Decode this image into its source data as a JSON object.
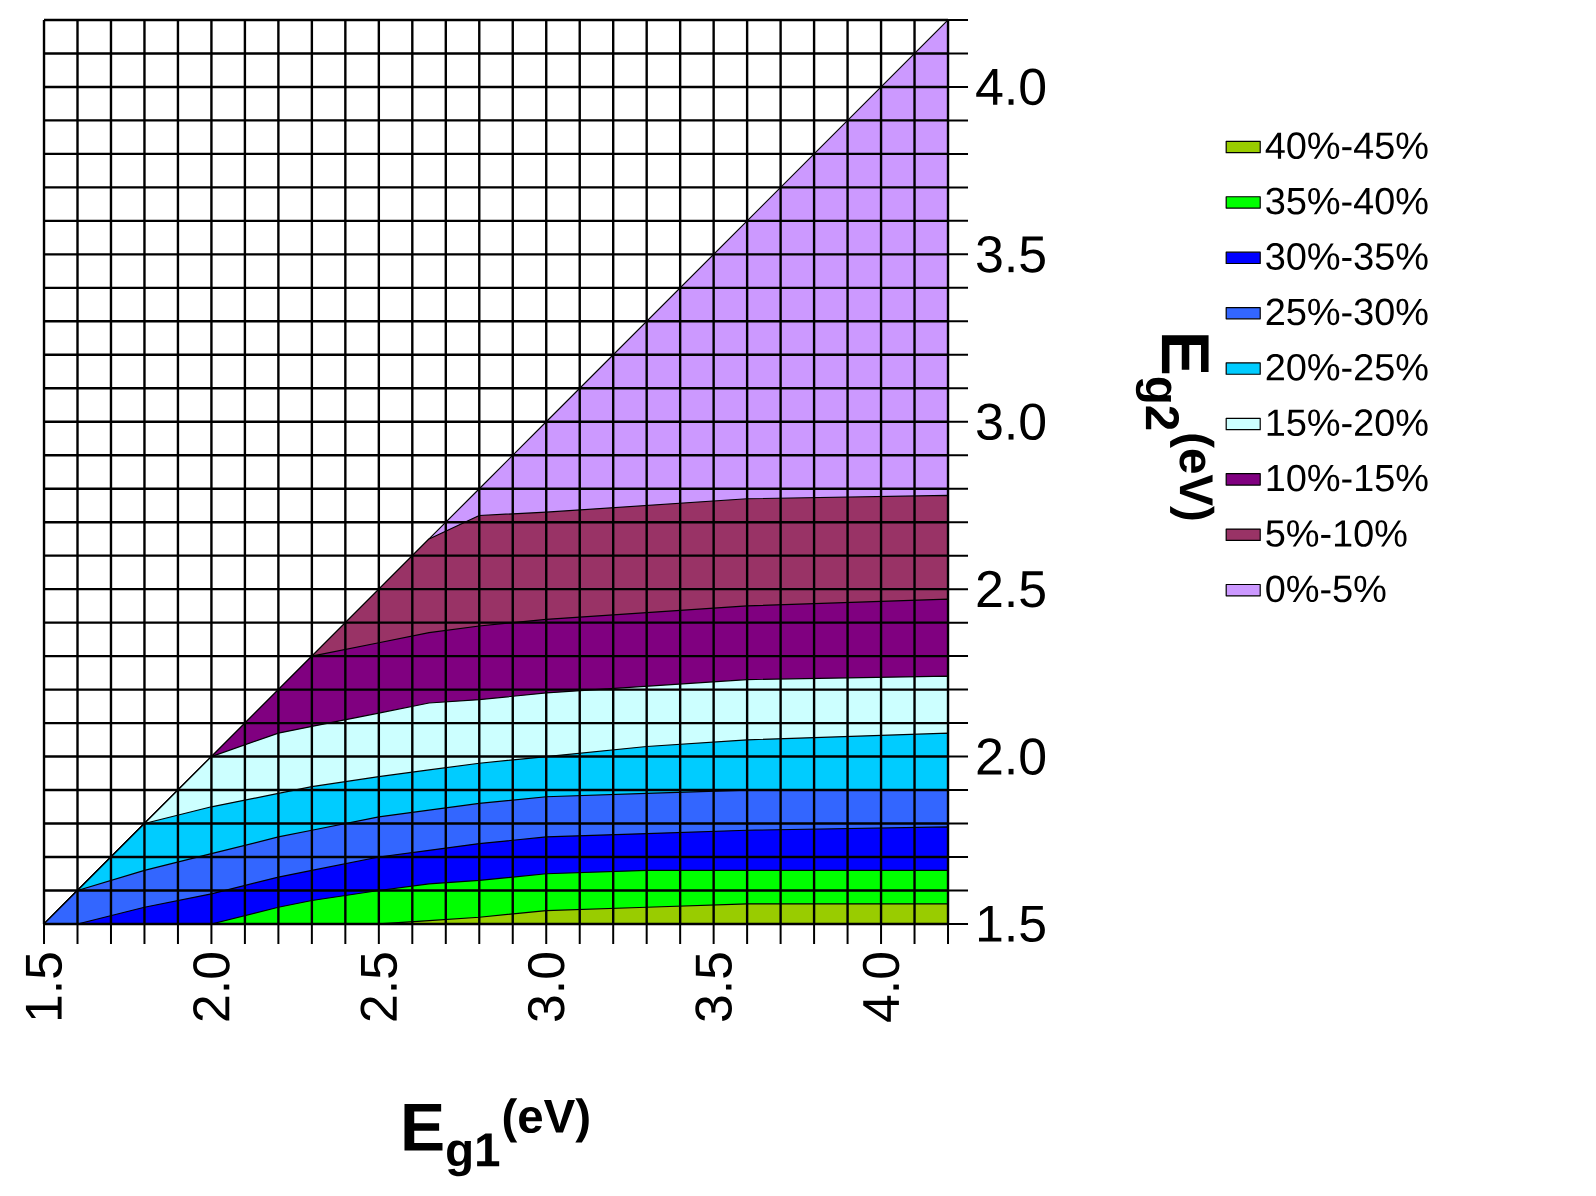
{
  "chart_data": {
    "type": "area",
    "xlabel": "E$_{g1}$$^{(eV)}$",
    "ylabel": "E$_{g2}$$^{(eV)}$",
    "x": [
      1.5,
      1.6,
      1.8,
      2.0,
      2.2,
      2.3,
      2.5,
      2.65,
      2.8,
      3.0,
      3.3,
      3.6,
      4.2
    ],
    "series": [
      {
        "name": "40%-45%",
        "color": "#99cc00",
        "values": [
          1.5,
          1.5,
          1.5,
          1.5,
          1.5,
          1.5,
          1.5,
          1.51,
          1.52,
          1.54,
          1.55,
          1.56,
          1.56
        ]
      },
      {
        "name": "35%-40%",
        "color": "#00ff00",
        "values": [
          1.5,
          1.5,
          1.5,
          1.5,
          1.55,
          1.57,
          1.6,
          1.62,
          1.63,
          1.65,
          1.66,
          1.66,
          1.66
        ]
      },
      {
        "name": "30%-35%",
        "color": "#0000ff",
        "values": [
          1.5,
          1.5,
          1.55,
          1.59,
          1.64,
          1.66,
          1.7,
          1.72,
          1.74,
          1.76,
          1.77,
          1.78,
          1.79
        ]
      },
      {
        "name": "25%-30%",
        "color": "#3366ff",
        "values": [
          1.5,
          1.6,
          1.66,
          1.71,
          1.76,
          1.78,
          1.82,
          1.84,
          1.86,
          1.88,
          1.89,
          1.9,
          1.9
        ]
      },
      {
        "name": "20%-25%",
        "color": "#00ccff",
        "values": [
          1.5,
          1.6,
          1.8,
          1.85,
          1.89,
          1.91,
          1.94,
          1.96,
          1.98,
          2.0,
          2.03,
          2.05,
          2.07
        ]
      },
      {
        "name": "15%-20%",
        "color": "#ccffff",
        "values": [
          1.5,
          1.6,
          1.8,
          2.0,
          2.07,
          2.09,
          2.13,
          2.16,
          2.17,
          2.19,
          2.21,
          2.23,
          2.24
        ]
      },
      {
        "name": "10%-15%",
        "color": "#800080",
        "values": [
          1.5,
          1.6,
          1.8,
          2.0,
          2.2,
          2.3,
          2.34,
          2.37,
          2.39,
          2.41,
          2.43,
          2.45,
          2.47
        ]
      },
      {
        "name": "5%-10%",
        "color": "#993366",
        "values": [
          1.5,
          1.6,
          1.8,
          2.0,
          2.2,
          2.3,
          2.5,
          2.65,
          2.72,
          2.73,
          2.75,
          2.77,
          2.78
        ]
      },
      {
        "name": "0%-5%",
        "color": "#cc99ff",
        "values": [
          1.5,
          1.6,
          1.8,
          2.0,
          2.2,
          2.3,
          2.5,
          2.65,
          2.8,
          3.0,
          3.3,
          3.6,
          4.2
        ]
      }
    ],
    "xlim": [
      1.5,
      4.2
    ],
    "ylim": [
      1.5,
      4.2
    ],
    "xticks": [
      1.5,
      {
        "value": 1.6,
        "label": null
      },
      {
        "value": 1.7,
        "label": null
      },
      {
        "value": 1.8,
        "label": null
      },
      {
        "value": 1.9,
        "label": null
      },
      {
        "value": 2.0,
        "label": "2.0"
      },
      {
        "value": 2.1,
        "label": null
      },
      {
        "value": 2.2,
        "label": null
      },
      {
        "value": 2.3,
        "label": null
      },
      {
        "value": 2.4,
        "label": null
      },
      2.5,
      {
        "value": 2.6,
        "label": null
      },
      {
        "value": 2.7,
        "label": null
      },
      {
        "value": 2.8,
        "label": null
      },
      {
        "value": 2.9,
        "label": null
      },
      {
        "value": 3.0,
        "label": "3.0"
      },
      {
        "value": 3.1,
        "label": null
      },
      {
        "value": 3.2,
        "label": null
      },
      {
        "value": 3.3,
        "label": null
      },
      {
        "value": 3.4,
        "label": null
      },
      3.5,
      {
        "value": 3.6,
        "label": null
      },
      {
        "value": 3.7,
        "label": null
      },
      {
        "value": 3.8,
        "label": null
      },
      {
        "value": 3.9,
        "label": null
      },
      {
        "value": 4.0,
        "label": "4.0"
      },
      {
        "value": 4.1,
        "label": null
      },
      {
        "value": 4.2,
        "label": null
      }
    ],
    "yticks": [
      1.5,
      {
        "value": 1.6,
        "label": null
      },
      {
        "value": 1.7,
        "label": null
      },
      {
        "value": 1.8,
        "label": null
      },
      {
        "value": 1.9,
        "label": null
      },
      {
        "value": 2.0,
        "label": "2.0"
      },
      {
        "value": 2.1,
        "label": null
      },
      {
        "value": 2.2,
        "label": null
      },
      {
        "value": 2.3,
        "label": null
      },
      {
        "value": 2.4,
        "label": null
      },
      2.5,
      {
        "value": 2.6,
        "label": null
      },
      {
        "value": 2.7,
        "label": null
      },
      {
        "value": 2.8,
        "label": null
      },
      {
        "value": 2.9,
        "label": null
      },
      {
        "value": 3.0,
        "label": "3.0"
      },
      {
        "value": 3.1,
        "label": null
      },
      {
        "value": 3.2,
        "label": null
      },
      {
        "value": 3.3,
        "label": null
      },
      {
        "value": 3.4,
        "label": null
      },
      3.5,
      {
        "value": 3.6,
        "label": null
      },
      {
        "value": 3.7,
        "label": null
      },
      {
        "value": 3.8,
        "label": null
      },
      {
        "value": 3.9,
        "label": null
      },
      {
        "value": 4.0,
        "label": "4.0"
      },
      {
        "value": 4.1,
        "label": null
      },
      {
        "value": 4.2,
        "label": null
      }
    ],
    "grid": true,
    "legend": "right"
  }
}
